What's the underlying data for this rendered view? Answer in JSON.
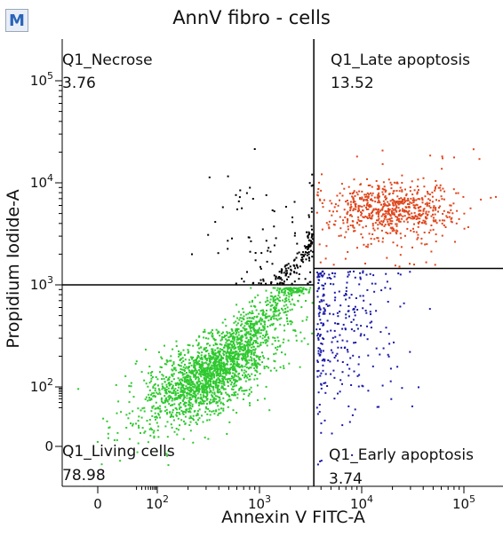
{
  "badge": "M",
  "chart_data": {
    "type": "scatter",
    "title": "AnnV fibro - cells",
    "xlabel": "Annexin V FITC-A",
    "ylabel": "Propidium Iodide-A",
    "x_scale": "biexponential",
    "y_scale": "biexponential",
    "x_ticks": [
      {
        "label": "0",
        "value": 0
      },
      {
        "label": "10²",
        "value": 100
      },
      {
        "label": "10³",
        "value": 1000
      },
      {
        "label": "10⁴",
        "value": 10000
      },
      {
        "label": "10⁵",
        "value": 100000
      }
    ],
    "y_ticks": [
      {
        "label": "0",
        "value": 0
      },
      {
        "label": "10²",
        "value": 100
      },
      {
        "label": "10³",
        "value": 1000
      },
      {
        "label": "10⁴",
        "value": 10000
      },
      {
        "label": "10⁵",
        "value": 100000
      }
    ],
    "gates": {
      "x_threshold": 3400,
      "y_threshold_left": 1000,
      "y_threshold_right": 1450
    },
    "quadrants": [
      {
        "name": "Q1_Necrose",
        "value": "3.76",
        "position": "top-left",
        "color": "#000000"
      },
      {
        "name": "Q1_Late apoptosis",
        "value": "13.52",
        "position": "top-right",
        "color": "#e0461c"
      },
      {
        "name": "Q1_Living cells",
        "value": "78.98",
        "position": "bottom-left",
        "color": "#2ec92e"
      },
      {
        "name": "Q1_Early apoptosis",
        "value": "3.74",
        "position": "bottom-right",
        "color": "#1a1aa8"
      }
    ],
    "populations": [
      {
        "quadrant": "Q1_Living cells",
        "color": "#2ec92e",
        "center": [
          300,
          130
        ],
        "spread": "diagonal"
      },
      {
        "quadrant": "Q1_Late apoptosis",
        "color": "#e0461c",
        "center": [
          20000,
          5500
        ],
        "spread": "compact"
      },
      {
        "quadrant": "Q1_Early apoptosis",
        "color": "#1a1aa8",
        "center": [
          8000,
          400
        ],
        "spread": "wide"
      },
      {
        "quadrant": "Q1_Necrose",
        "color": "#000000",
        "center": [
          1500,
          2500
        ],
        "spread": "diagonal"
      }
    ]
  }
}
